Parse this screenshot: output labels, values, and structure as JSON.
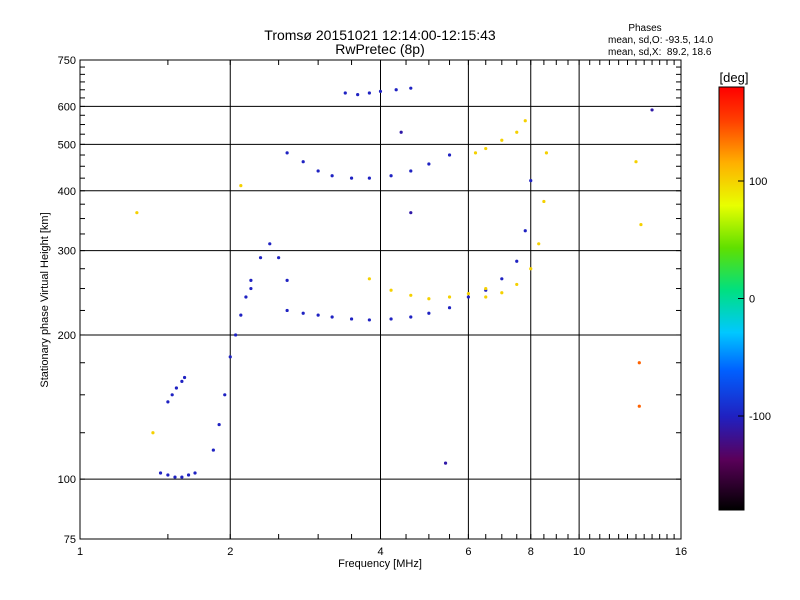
{
  "header": {
    "title_line1": "Tromsø 20151021 12:14:00-12:15:43",
    "title_line2": "RwPretec (8p)"
  },
  "phase_stats": {
    "heading": "Phases",
    "line_o": "mean, sd,O: -93.5, 14.0",
    "line_x": "mean, sd,X:  89.2, 18.6"
  },
  "colorbar": {
    "label": "[deg]",
    "min": -180,
    "max": 180,
    "tick_values": [
      100,
      0,
      -100
    ],
    "tick_labels": [
      "100",
      "0",
      "-100"
    ]
  },
  "chart_data": {
    "type": "scatter",
    "title": "Tromsø 20151021 12:14:00-12:15:43",
    "subtitle": "RwPretec (8p)",
    "xlabel": "Frequency [MHz]",
    "ylabel": "Stationary phase Virtual Height [km]",
    "xscale": "log",
    "yscale": "log",
    "xlim": [
      1,
      16
    ],
    "ylim": [
      75,
      750
    ],
    "xticks": [
      1,
      2,
      4,
      6,
      8,
      10,
      16
    ],
    "xtick_labels": [
      "1",
      "2",
      "4",
      "6",
      "8",
      "10",
      "16"
    ],
    "yticks": [
      75,
      100,
      200,
      300,
      400,
      500,
      600,
      750
    ],
    "ytick_labels": [
      "75",
      "100",
      "200",
      "300",
      "400",
      "500",
      "600",
      "750"
    ],
    "grid": true,
    "series": [
      {
        "color_value": -100,
        "x": [
          1.45,
          1.5,
          1.55,
          1.6,
          1.65,
          1.7
        ],
        "y": [
          103,
          102,
          101,
          101,
          102,
          103
        ]
      },
      {
        "color_value": -100,
        "x": [
          1.5,
          1.53,
          1.56,
          1.6,
          1.62
        ],
        "y": [
          145,
          150,
          155,
          160,
          163
        ]
      },
      {
        "color_value": -100,
        "x": [
          1.85,
          1.9,
          1.95,
          2.0,
          2.05,
          2.1,
          2.15,
          2.2
        ],
        "y": [
          115,
          130,
          150,
          180,
          200,
          220,
          240,
          260
        ]
      },
      {
        "color_value": -100,
        "x": [
          2.2,
          2.3,
          2.4,
          2.5,
          2.6
        ],
        "y": [
          250,
          290,
          310,
          290,
          260
        ]
      },
      {
        "color_value": -100,
        "x": [
          2.6,
          2.8,
          3.0,
          3.2,
          3.5,
          3.8,
          4.2,
          4.6,
          5.0,
          5.5
        ],
        "y": [
          225,
          222,
          220,
          218,
          216,
          215,
          216,
          218,
          222,
          228
        ]
      },
      {
        "color_value": -100,
        "x": [
          2.6,
          2.8,
          3.0,
          3.2,
          3.5,
          3.8,
          4.2,
          4.6,
          5.0,
          5.5
        ],
        "y": [
          480,
          460,
          440,
          430,
          425,
          425,
          430,
          440,
          455,
          475
        ]
      },
      {
        "color_value": -100,
        "x": [
          3.4,
          3.6,
          3.8,
          4.0,
          4.3,
          4.6
        ],
        "y": [
          640,
          635,
          640,
          645,
          650,
          655
        ]
      },
      {
        "color_value": -100,
        "x": [
          6.0,
          6.5,
          7.0,
          7.5,
          7.8,
          8.0
        ],
        "y": [
          240,
          248,
          262,
          285,
          330,
          420
        ]
      },
      {
        "color_value": 100,
        "x": [
          3.8,
          4.2,
          4.6,
          5.0,
          5.5,
          6.0,
          6.5
        ],
        "y": [
          262,
          248,
          242,
          238,
          240,
          244,
          250
        ]
      },
      {
        "color_value": 100,
        "x": [
          6.5,
          7.0,
          7.5,
          8.0,
          8.3,
          8.5,
          8.6
        ],
        "y": [
          240,
          245,
          255,
          275,
          310,
          380,
          480
        ]
      },
      {
        "color_value": 100,
        "x": [
          6.2,
          6.5,
          7.0,
          7.5,
          7.8
        ],
        "y": [
          480,
          490,
          510,
          530,
          560
        ]
      },
      {
        "color_value": 100,
        "x": [
          1.3,
          1.4,
          2.1,
          13.0,
          13.3
        ],
        "y": [
          360,
          125,
          410,
          460,
          340
        ]
      },
      {
        "color_value": 140,
        "x": [
          13.2,
          13.2
        ],
        "y": [
          175,
          142
        ]
      },
      {
        "color_value": -110,
        "x": [
          4.6,
          5.4,
          4.4,
          14.0
        ],
        "y": [
          360,
          108,
          530,
          590
        ]
      }
    ]
  }
}
